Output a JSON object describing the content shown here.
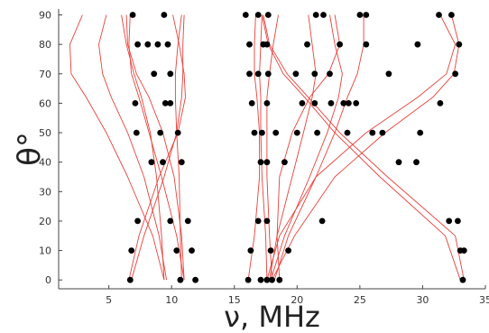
{
  "chart_data": {
    "type": "scatter",
    "xlabel": "ν, MHz",
    "ylabel": "θ°",
    "xlim": [
      1,
      35
    ],
    "ylim": [
      -3,
      92
    ],
    "x_ticks": [
      5,
      10,
      15,
      20,
      25,
      30,
      35
    ],
    "y_ticks": [
      0,
      10,
      20,
      30,
      40,
      50,
      60,
      70,
      80,
      90
    ],
    "grid": false,
    "colors": {
      "points": "#000000",
      "curves": "#e8403a",
      "axis": "#444444"
    },
    "points": [
      {
        "x": 6.7,
        "y": 0
      },
      {
        "x": 10.7,
        "y": 0
      },
      {
        "x": 11.9,
        "y": 0
      },
      {
        "x": 16.1,
        "y": 0
      },
      {
        "x": 17.1,
        "y": 0
      },
      {
        "x": 17.6,
        "y": 0
      },
      {
        "x": 18.0,
        "y": 0
      },
      {
        "x": 18.6,
        "y": 0
      },
      {
        "x": 33.2,
        "y": 0
      },
      {
        "x": 6.8,
        "y": 10
      },
      {
        "x": 10.4,
        "y": 10
      },
      {
        "x": 11.6,
        "y": 10
      },
      {
        "x": 16.3,
        "y": 10
      },
      {
        "x": 17.9,
        "y": 10
      },
      {
        "x": 19.3,
        "y": 10
      },
      {
        "x": 33.0,
        "y": 10
      },
      {
        "x": 33.3,
        "y": 10
      },
      {
        "x": 7.3,
        "y": 20
      },
      {
        "x": 9.9,
        "y": 20
      },
      {
        "x": 11.3,
        "y": 20
      },
      {
        "x": 16.9,
        "y": 20
      },
      {
        "x": 17.6,
        "y": 20
      },
      {
        "x": 22.0,
        "y": 20
      },
      {
        "x": 32.1,
        "y": 20
      },
      {
        "x": 32.8,
        "y": 20
      },
      {
        "x": 8.4,
        "y": 40
      },
      {
        "x": 9.3,
        "y": 40
      },
      {
        "x": 10.8,
        "y": 40
      },
      {
        "x": 17.1,
        "y": 40
      },
      {
        "x": 17.6,
        "y": 40
      },
      {
        "x": 19.0,
        "y": 40
      },
      {
        "x": 28.1,
        "y": 40
      },
      {
        "x": 29.5,
        "y": 40
      },
      {
        "x": 7.2,
        "y": 50
      },
      {
        "x": 9.1,
        "y": 50
      },
      {
        "x": 10.5,
        "y": 50
      },
      {
        "x": 16.6,
        "y": 50
      },
      {
        "x": 17.2,
        "y": 50
      },
      {
        "x": 18.3,
        "y": 50
      },
      {
        "x": 20.0,
        "y": 50
      },
      {
        "x": 21.6,
        "y": 50
      },
      {
        "x": 24.0,
        "y": 50
      },
      {
        "x": 26.0,
        "y": 50
      },
      {
        "x": 26.8,
        "y": 50
      },
      {
        "x": 29.8,
        "y": 50
      },
      {
        "x": 7.1,
        "y": 60
      },
      {
        "x": 9.5,
        "y": 60
      },
      {
        "x": 9.9,
        "y": 60
      },
      {
        "x": 16.4,
        "y": 60
      },
      {
        "x": 17.6,
        "y": 60
      },
      {
        "x": 20.4,
        "y": 60
      },
      {
        "x": 21.4,
        "y": 60
      },
      {
        "x": 22.7,
        "y": 60
      },
      {
        "x": 23.7,
        "y": 60
      },
      {
        "x": 24.1,
        "y": 60
      },
      {
        "x": 24.7,
        "y": 60
      },
      {
        "x": 31.4,
        "y": 60
      },
      {
        "x": 8.6,
        "y": 70
      },
      {
        "x": 9.9,
        "y": 70
      },
      {
        "x": 16.2,
        "y": 70
      },
      {
        "x": 16.9,
        "y": 70
      },
      {
        "x": 17.7,
        "y": 70
      },
      {
        "x": 19.9,
        "y": 70
      },
      {
        "x": 21.4,
        "y": 70
      },
      {
        "x": 22.6,
        "y": 70
      },
      {
        "x": 27.3,
        "y": 70
      },
      {
        "x": 32.6,
        "y": 70
      },
      {
        "x": 7.3,
        "y": 80
      },
      {
        "x": 8.1,
        "y": 80
      },
      {
        "x": 8.9,
        "y": 80
      },
      {
        "x": 9.7,
        "y": 80
      },
      {
        "x": 16.2,
        "y": 80
      },
      {
        "x": 17.3,
        "y": 80
      },
      {
        "x": 17.6,
        "y": 80
      },
      {
        "x": 20.8,
        "y": 80
      },
      {
        "x": 23.4,
        "y": 80
      },
      {
        "x": 25.5,
        "y": 80
      },
      {
        "x": 29.6,
        "y": 80
      },
      {
        "x": 32.9,
        "y": 80
      },
      {
        "x": 6.9,
        "y": 90
      },
      {
        "x": 9.4,
        "y": 90
      },
      {
        "x": 15.9,
        "y": 90
      },
      {
        "x": 16.9,
        "y": 90
      },
      {
        "x": 17.7,
        "y": 90
      },
      {
        "x": 21.5,
        "y": 90
      },
      {
        "x": 22.1,
        "y": 90
      },
      {
        "x": 25.0,
        "y": 90
      },
      {
        "x": 25.5,
        "y": 90
      },
      {
        "x": 31.3,
        "y": 90
      },
      {
        "x": 32.3,
        "y": 90
      }
    ],
    "curves": [
      {
        "x": [
          9.4,
          8.5,
          6.5,
          4.8,
          3.2,
          2.0,
          1.9,
          2.9
        ],
        "y": [
          0,
          15,
          35,
          50,
          62,
          70,
          80,
          90
        ]
      },
      {
        "x": [
          9.6,
          9.0,
          7.8,
          6.5,
          5.2,
          4.5,
          4.2,
          4.8
        ],
        "y": [
          0,
          15,
          35,
          50,
          62,
          70,
          80,
          90
        ]
      },
      {
        "x": [
          11.0,
          10.8,
          10.2,
          9.3,
          8.2,
          7.2,
          6.5,
          6.4
        ],
        "y": [
          0,
          15,
          35,
          50,
          62,
          70,
          80,
          90
        ]
      },
      {
        "x": [
          11.0,
          10.4,
          9.2,
          8.2,
          7.4,
          6.8,
          6.6,
          6.7
        ],
        "y": [
          0,
          15,
          35,
          50,
          62,
          70,
          80,
          90
        ]
      },
      {
        "x": [
          6.6,
          7.4,
          9.0,
          10.5,
          11.1,
          11.0,
          10.6,
          10.1
        ],
        "y": [
          0,
          15,
          35,
          50,
          62,
          70,
          80,
          90
        ]
      },
      {
        "x": [
          6.8,
          7.8,
          9.4,
          10.4,
          10.8,
          10.9,
          10.9,
          11.0
        ],
        "y": [
          0,
          15,
          35,
          50,
          62,
          70,
          80,
          90
        ]
      },
      {
        "x": [
          10.8,
          10.7,
          10.6,
          10.4,
          10.3,
          10.3,
          10.5,
          10.8
        ],
        "y": [
          0,
          15,
          35,
          50,
          62,
          70,
          80,
          90
        ]
      },
      {
        "x": [
          9.4,
          9.2,
          8.8,
          8.3,
          7.6,
          7.0,
          6.4,
          6.0
        ],
        "y": [
          0,
          15,
          35,
          50,
          62,
          70,
          80,
          90
        ]
      },
      {
        "x": [
          16.1,
          16.6,
          17.0,
          17.0,
          16.8,
          16.6,
          16.6,
          16.7
        ],
        "y": [
          0,
          15,
          35,
          50,
          62,
          70,
          80,
          90
        ]
      },
      {
        "x": [
          17.6,
          17.5,
          17.2,
          17.1,
          17.1,
          17.0,
          17.1,
          17.2
        ],
        "y": [
          0,
          15,
          35,
          50,
          62,
          70,
          80,
          90
        ]
      },
      {
        "x": [
          18.0,
          17.8,
          17.6,
          17.6,
          17.6,
          17.8,
          18.1,
          18.5
        ],
        "y": [
          0,
          15,
          35,
          50,
          62,
          70,
          80,
          90
        ]
      },
      {
        "x": [
          18.6,
          18.4,
          18.6,
          19.6,
          21.0,
          22.5,
          23.4,
          23.0
        ],
        "y": [
          0,
          15,
          35,
          50,
          62,
          70,
          80,
          90
        ]
      },
      {
        "x": [
          18.2,
          19.3,
          21.5,
          23.0,
          24.0,
          24.8,
          25.3,
          25.3
        ],
        "y": [
          0,
          15,
          35,
          50,
          62,
          70,
          80,
          90
        ]
      },
      {
        "x": [
          17.8,
          18.4,
          19.6,
          20.5,
          21.2,
          21.5,
          21.2,
          20.9
        ],
        "y": [
          0,
          15,
          35,
          50,
          62,
          70,
          80,
          90
        ]
      },
      {
        "x": [
          17.9,
          19.0,
          21.0,
          22.4,
          23.3,
          23.6,
          23.0,
          22.6
        ],
        "y": [
          0,
          15,
          35,
          50,
          62,
          70,
          80,
          90
        ]
      },
      {
        "x": [
          33.3,
          32.6,
          27.2,
          23.4,
          20.9,
          19.2,
          17.8,
          17.3
        ],
        "y": [
          0,
          15,
          35,
          50,
          62,
          70,
          80,
          90
        ]
      },
      {
        "x": [
          33.0,
          31.8,
          26.6,
          23.0,
          20.6,
          18.9,
          17.7,
          17.2
        ],
        "y": [
          0,
          15,
          35,
          50,
          62,
          70,
          80,
          90
        ]
      },
      {
        "x": [
          18.0,
          19.8,
          23.0,
          27.0,
          30.8,
          32.5,
          32.9,
          32.3
        ],
        "y": [
          0,
          15,
          35,
          50,
          62,
          70,
          80,
          90
        ]
      },
      {
        "x": [
          17.6,
          18.6,
          21.5,
          25.5,
          29.6,
          31.9,
          32.6,
          31.4
        ],
        "y": [
          0,
          15,
          35,
          50,
          62,
          70,
          80,
          90
        ]
      }
    ]
  }
}
